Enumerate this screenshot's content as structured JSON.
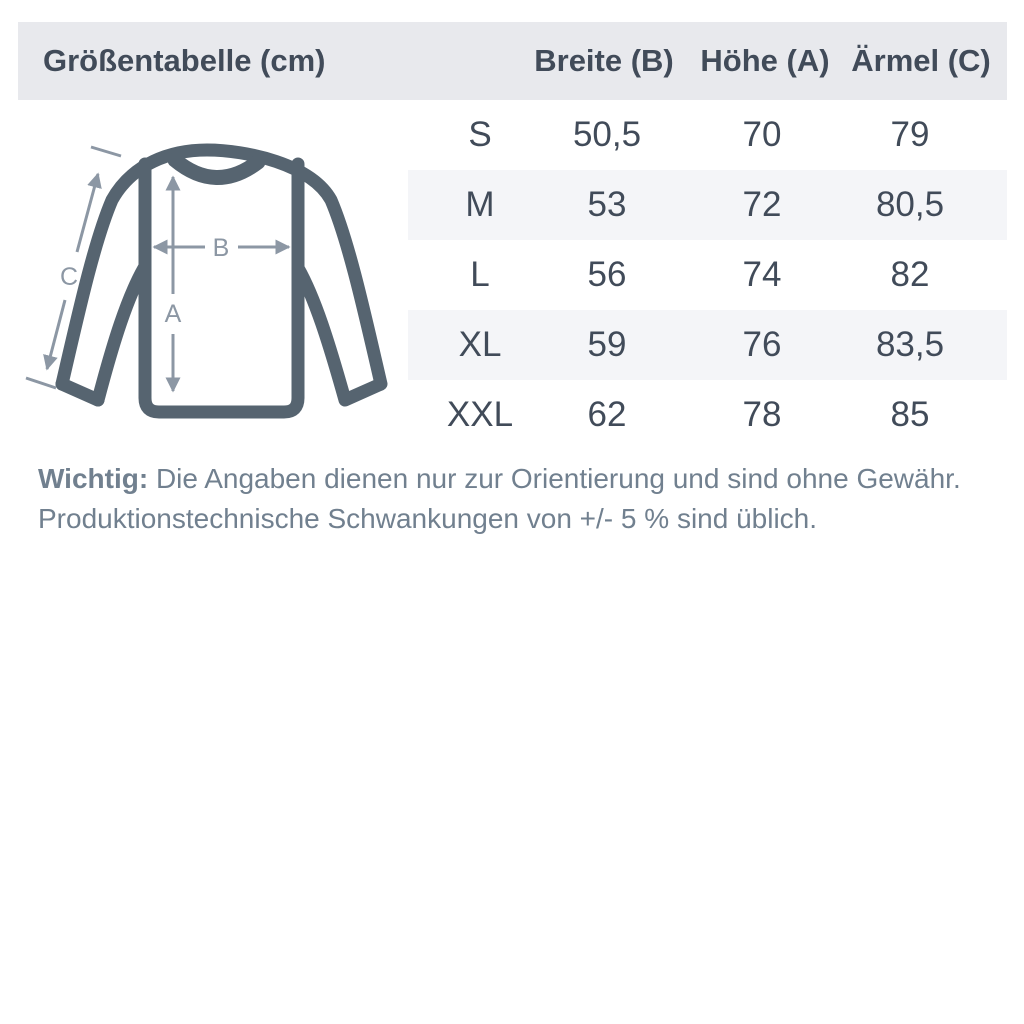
{
  "header": {
    "title": "Größentabelle (cm)",
    "columns": [
      "Breite (B)",
      "Höhe (A)",
      "Ärmel (C)"
    ]
  },
  "table": {
    "rows": [
      {
        "size": "S",
        "breite": "50,5",
        "hoehe": "70",
        "aermel": "79"
      },
      {
        "size": "M",
        "breite": "53",
        "hoehe": "72",
        "aermel": "80,5"
      },
      {
        "size": "L",
        "breite": "56",
        "hoehe": "74",
        "aermel": "82"
      },
      {
        "size": "XL",
        "breite": "59",
        "hoehe": "76",
        "aermel": "83,5"
      },
      {
        "size": "XXL",
        "breite": "62",
        "hoehe": "78",
        "aermel": "85"
      }
    ]
  },
  "diagram": {
    "labels": {
      "a": "A",
      "b": "B",
      "c": "C"
    }
  },
  "footer": {
    "bold": "Wichtig:",
    "line1": "Die Angaben dienen nur zur Orientierung und sind ohne Gewähr.",
    "line2": "Produktionstechnische Schwankungen von +/- 5 % sind üblich."
  },
  "colors": {
    "header_background": "#E8E9ED",
    "stripe_background": "#F4F5F8",
    "table_text": "#414B59",
    "sweater_outline": "#566470",
    "arrow": "#8C97A4",
    "footer_text": "#71808F"
  }
}
